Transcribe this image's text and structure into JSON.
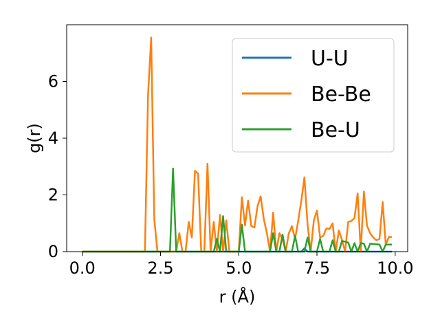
{
  "chart_data": {
    "type": "line",
    "title": "",
    "xlabel": "r (Å)",
    "ylabel": "g(r)",
    "xlim": [
      -0.5,
      10.4
    ],
    "ylim": [
      0,
      8
    ],
    "xticks": [
      0.0,
      2.5,
      5.0,
      7.5,
      10.0
    ],
    "xtick_labels": [
      "0.0",
      "2.5",
      "5.0",
      "7.5",
      "10.0"
    ],
    "yticks": [
      0,
      2,
      4,
      6
    ],
    "ytick_labels": [
      "0",
      "2",
      "4",
      "6"
    ],
    "grid": false,
    "legend_position": "top-right",
    "series": [
      {
        "name": "U-U",
        "color": "#1f77b4",
        "x": [
          0.0,
          7.0,
          7.1,
          7.2,
          9.9
        ],
        "y": [
          0,
          0,
          0.12,
          0,
          0
        ]
      },
      {
        "name": "Be-Be",
        "color": "#ff7f0e",
        "x": [
          0.0,
          2.0,
          2.1,
          2.2,
          2.3,
          2.4,
          3.0,
          3.1,
          3.2,
          3.3,
          3.4,
          3.5,
          3.6,
          3.7,
          3.8,
          3.9,
          4.0,
          4.1,
          4.2,
          4.3,
          4.4,
          4.5,
          4.6,
          4.7,
          4.8,
          4.9,
          5.0,
          5.1,
          5.2,
          5.3,
          5.4,
          5.5,
          5.6,
          5.7,
          5.8,
          5.9,
          6.0,
          6.1,
          6.2,
          6.3,
          6.4,
          6.5,
          6.6,
          6.7,
          6.8,
          6.9,
          7.0,
          7.1,
          7.2,
          7.3,
          7.4,
          7.5,
          7.6,
          7.7,
          7.8,
          7.9,
          8.0,
          8.1,
          8.2,
          8.3,
          8.4,
          8.5,
          8.6,
          8.7,
          8.8,
          8.9,
          9.0,
          9.1,
          9.2,
          9.3,
          9.4,
          9.5,
          9.6,
          9.7,
          9.8,
          9.9
        ],
        "y": [
          0,
          0,
          5.5,
          7.55,
          1.15,
          0,
          0,
          0.65,
          0,
          0,
          1.05,
          0.5,
          2.85,
          2.75,
          0,
          0,
          3.1,
          0,
          1.05,
          0,
          1.3,
          0,
          1.1,
          0,
          0,
          0,
          0,
          1.92,
          0.92,
          1.8,
          0.9,
          0.85,
          1.6,
          1.95,
          1.15,
          0.65,
          0,
          1.38,
          0,
          0.65,
          0.45,
          0,
          0.65,
          0.9,
          0.45,
          1.08,
          1.8,
          2.62,
          0.95,
          0,
          1.1,
          1.45,
          0.5,
          0.55,
          0.82,
          0.8,
          1.0,
          0,
          0.75,
          0.42,
          0,
          1.05,
          1.08,
          1.18,
          2.05,
          0,
          2.12,
          0.92,
          0.65,
          0.5,
          0.4,
          0.45,
          1.75,
          0.25,
          0.52,
          0.52
        ],
        "note_x_range": "r values in Å"
      },
      {
        "name": "Be-U",
        "color": "#2ca02c",
        "x": [
          0.0,
          2.8,
          2.9,
          3.0,
          4.2,
          4.3,
          4.4,
          4.5,
          4.6,
          4.7,
          4.8,
          4.9,
          5.0,
          5.1,
          5.2,
          6.0,
          6.1,
          6.2,
          6.3,
          6.4,
          6.5,
          6.6,
          6.7,
          6.8,
          6.9,
          7.0,
          7.1,
          7.2,
          7.3,
          7.4,
          7.5,
          7.6,
          7.7,
          7.8,
          7.9,
          8.0,
          8.1,
          8.2,
          8.3,
          8.4,
          8.5,
          8.6,
          8.7,
          8.8,
          8.9,
          9.0,
          9.1,
          9.2,
          9.3,
          9.4,
          9.5,
          9.6,
          9.7,
          9.8,
          9.9
        ],
        "y": [
          0,
          0,
          2.93,
          0,
          0,
          0.45,
          0,
          1.25,
          0,
          0,
          0,
          0,
          0,
          0.95,
          0,
          0,
          0.65,
          0,
          0,
          0.6,
          0,
          0,
          0,
          0.55,
          0,
          0,
          0,
          0.5,
          0,
          0,
          0,
          0.45,
          0,
          0,
          0,
          0.4,
          0,
          0,
          0.38,
          0.35,
          0.32,
          0,
          0.3,
          0,
          0.3,
          0.28,
          0,
          0.28,
          0.27,
          0.26,
          0.25,
          0,
          0.25,
          0.25,
          0.25
        ]
      }
    ]
  }
}
